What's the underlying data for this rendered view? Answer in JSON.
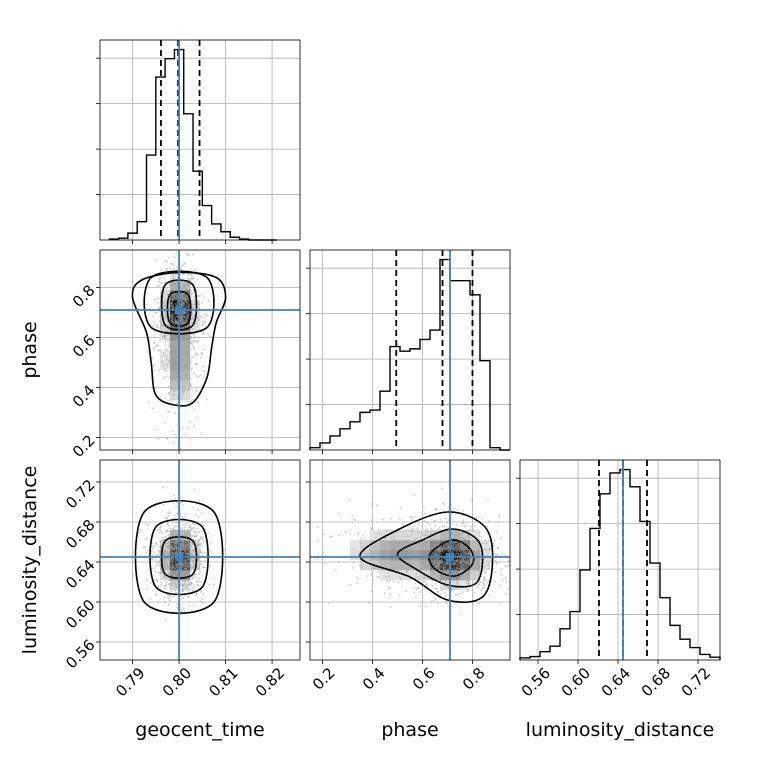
{
  "chart_data": {
    "type": "corner",
    "parameters": [
      "geocent_time",
      "phase",
      "luminosity_distance"
    ],
    "truths": {
      "geocent_time": 0.8,
      "phase": 0.71,
      "luminosity_distance": 0.645
    },
    "grid": true,
    "truth_color": "#4682b4",
    "ranges": {
      "geocent_time": [
        0.783,
        0.826
      ],
      "phase": [
        0.15,
        0.95
      ],
      "luminosity_distance": [
        0.542,
        0.742
      ]
    },
    "ticks": {
      "geocent_time": [
        "0.79",
        "0.80",
        "0.81",
        "0.82"
      ],
      "phase": [
        "0.2",
        "0.4",
        "0.6",
        "0.8"
      ],
      "luminosity_distance": [
        "0.56",
        "0.60",
        "0.64",
        "0.68",
        "0.72"
      ]
    },
    "diagonal": [
      {
        "parameter": "geocent_time",
        "quantiles": [
          0.7961,
          0.7998,
          0.8044
        ],
        "bin_edges": [
          0.785,
          0.787,
          0.789,
          0.791,
          0.793,
          0.795,
          0.797,
          0.799,
          0.801,
          0.803,
          0.805,
          0.807,
          0.809,
          0.811,
          0.813,
          0.815,
          0.817,
          0.819,
          0.821
        ],
        "counts": [
          2,
          4,
          15,
          40,
          185,
          355,
          395,
          415,
          275,
          150,
          75,
          35,
          18,
          6,
          2,
          0,
          0,
          0
        ]
      },
      {
        "parameter": "phase",
        "quantiles": [
          0.495,
          0.68,
          0.8
        ],
        "bin_edges": [
          0.15,
          0.19,
          0.23,
          0.27,
          0.31,
          0.35,
          0.39,
          0.43,
          0.47,
          0.51,
          0.55,
          0.59,
          0.63,
          0.67,
          0.71,
          0.75,
          0.79,
          0.83,
          0.87,
          0.91,
          0.95
        ],
        "counts": [
          5,
          15,
          30,
          45,
          60,
          80,
          85,
          125,
          220,
          210,
          215,
          235,
          255,
          405,
          360,
          360,
          330,
          190,
          5,
          0
        ]
      },
      {
        "parameter": "luminosity_distance",
        "quantiles": [
          0.621,
          0.645,
          0.669
        ],
        "bin_edges": [
          0.542,
          0.552,
          0.562,
          0.572,
          0.582,
          0.592,
          0.602,
          0.612,
          0.622,
          0.632,
          0.642,
          0.652,
          0.662,
          0.672,
          0.682,
          0.692,
          0.702,
          0.712,
          0.722,
          0.732,
          0.742
        ],
        "counts": [
          3,
          5,
          12,
          20,
          45,
          70,
          130,
          190,
          240,
          270,
          275,
          250,
          200,
          140,
          90,
          50,
          30,
          18,
          8,
          4
        ]
      }
    ],
    "joint_panels": [
      {
        "x": "geocent_time",
        "y": "phase",
        "density": [
          {
            "x": 0.8,
            "y": 0.71,
            "sx": 0.0015,
            "sy": 0.06,
            "w": 0.95
          },
          {
            "x": 0.8,
            "y": 0.5,
            "sx": 0.0016,
            "sy": 0.09,
            "w": 0.3
          }
        ],
        "contours": [
          [
            [
              0.794,
              0.64
            ],
            [
              0.794,
              0.84
            ],
            [
              0.806,
              0.84
            ],
            [
              0.806,
              0.64
            ]
          ],
          [
            [
              0.797,
              0.65
            ],
            [
              0.797,
              0.81
            ],
            [
              0.803,
              0.81
            ],
            [
              0.803,
              0.65
            ]
          ],
          [
            [
              0.798,
              0.66
            ],
            [
              0.798,
              0.77
            ],
            [
              0.802,
              0.77
            ],
            [
              0.802,
              0.66
            ]
          ]
        ],
        "outer_contour": [
          [
            0.79,
            0.76
          ],
          [
            0.792,
            0.83
          ],
          [
            0.8,
            0.86
          ],
          [
            0.808,
            0.84
          ],
          [
            0.81,
            0.76
          ],
          [
            0.808,
            0.66
          ],
          [
            0.807,
            0.56
          ],
          [
            0.806,
            0.44
          ],
          [
            0.803,
            0.34
          ],
          [
            0.799,
            0.33
          ],
          [
            0.795,
            0.37
          ],
          [
            0.794,
            0.5
          ],
          [
            0.793,
            0.62
          ]
        ]
      },
      {
        "x": "geocent_time",
        "y": "luminosity_distance",
        "density": [
          {
            "x": 0.8,
            "y": 0.645,
            "sx": 0.0017,
            "sy": 0.013,
            "w": 1.0
          }
        ],
        "contours": [
          [
            [
              0.7925,
              0.6
            ],
            [
              0.7925,
              0.69
            ],
            [
              0.8075,
              0.69
            ],
            [
              0.8075,
              0.6
            ]
          ],
          [
            [
              0.795,
              0.615
            ],
            [
              0.795,
              0.675
            ],
            [
              0.805,
              0.675
            ],
            [
              0.805,
              0.615
            ]
          ],
          [
            [
              0.797,
              0.628
            ],
            [
              0.797,
              0.661
            ],
            [
              0.803,
              0.661
            ],
            [
              0.803,
              0.628
            ]
          ]
        ]
      },
      {
        "x": "phase",
        "y": "luminosity_distance",
        "density": [
          {
            "x": 0.72,
            "y": 0.645,
            "sx": 0.06,
            "sy": 0.013,
            "w": 0.95
          },
          {
            "x": 0.5,
            "y": 0.648,
            "sx": 0.1,
            "sy": 0.012,
            "w": 0.35
          }
        ],
        "contours": [
          [
            [
              0.35,
              0.645
            ],
            [
              0.5,
              0.672
            ],
            [
              0.7,
              0.69
            ],
            [
              0.85,
              0.675
            ],
            [
              0.88,
              0.64
            ],
            [
              0.84,
              0.605
            ],
            [
              0.7,
              0.602
            ],
            [
              0.55,
              0.625
            ]
          ],
          [
            [
              0.5,
              0.648
            ],
            [
              0.6,
              0.662
            ],
            [
              0.72,
              0.673
            ],
            [
              0.82,
              0.662
            ],
            [
              0.84,
              0.64
            ],
            [
              0.81,
              0.618
            ],
            [
              0.7,
              0.617
            ],
            [
              0.58,
              0.632
            ]
          ],
          [
            [
              0.63,
              0.648
            ],
            [
              0.72,
              0.662
            ],
            [
              0.79,
              0.653
            ],
            [
              0.8,
              0.638
            ],
            [
              0.73,
              0.626
            ],
            [
              0.65,
              0.633
            ]
          ]
        ]
      }
    ]
  }
}
